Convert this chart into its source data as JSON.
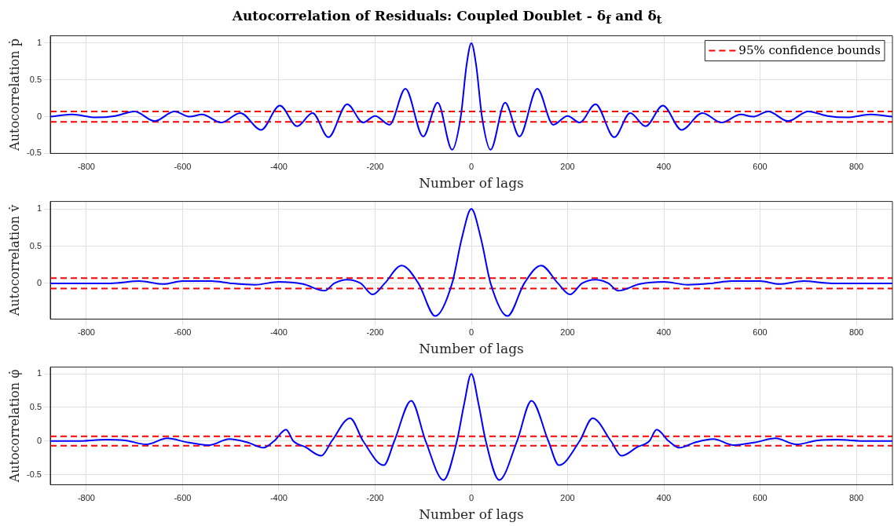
{
  "chart_data": [
    {
      "type": "line",
      "title": "Autocorrelation of Residuals: Coupled Doublet - δ$_{f}$ and δ$_{t}$",
      "xlabel": "Number of lags",
      "ylabel": "Autocorrelation ṗ",
      "xlim": [
        -875,
        875
      ],
      "xticks": [
        -800,
        -600,
        -400,
        -200,
        0,
        200,
        400,
        600,
        800
      ],
      "ylim": [
        -0.5,
        1.1
      ],
      "yticks": [
        -0.5,
        0,
        0.5,
        1
      ],
      "grid": true,
      "legend": "top right",
      "line_style": "solid",
      "marker": "none",
      "series": [
        {
          "color": "#0000ff",
          "x": [
            -875,
            -830,
            -780,
            -740,
            -700,
            -658,
            -617,
            -585,
            -560,
            -520,
            -480,
            -437,
            -398,
            -362,
            -330,
            -297,
            -258,
            -225,
            -200,
            -170,
            -137,
            -100,
            -70,
            -40,
            -22,
            -10,
            0,
            10,
            22,
            40,
            70,
            100,
            137,
            170,
            200,
            225,
            258,
            297,
            330,
            362,
            398,
            437,
            480,
            520,
            560,
            585,
            617,
            658,
            700,
            740,
            780,
            830,
            875
          ],
          "values": [
            0,
            0.03,
            -0.01,
            0.01,
            0.07,
            -0.06,
            0.07,
            0,
            0.03,
            -0.08,
            0.05,
            -0.18,
            0.15,
            -0.13,
            0.05,
            -0.28,
            0.17,
            -0.08,
            0.01,
            -0.11,
            0.38,
            -0.27,
            0.19,
            -0.45,
            0,
            0.7,
            1,
            0.7,
            0,
            -0.45,
            0.19,
            -0.27,
            0.38,
            -0.11,
            0.01,
            -0.08,
            0.17,
            -0.28,
            0.05,
            -0.13,
            0.15,
            -0.18,
            0.05,
            -0.08,
            0.03,
            0,
            0.07,
            -0.06,
            0.07,
            0.01,
            -0.01,
            0.03,
            0
          ]
        }
      ],
      "ref_lines": [
        {
          "axis": "y",
          "value": 0.07,
          "label": "95% confidence bounds",
          "color": "#ff0000",
          "line_style": "dashed"
        },
        {
          "axis": "y",
          "value": -0.07,
          "color": "#ff0000",
          "line_style": "dashed"
        }
      ]
    },
    {
      "type": "line",
      "xlabel": "Number of lags",
      "ylabel": "Autocorrelation v̇",
      "xlim": [
        -875,
        875
      ],
      "xticks": [
        -800,
        -600,
        -400,
        -200,
        0,
        200,
        400,
        600,
        800
      ],
      "ylim": [
        -0.48,
        1.1
      ],
      "yticks": [
        0,
        0.5,
        1
      ],
      "grid": true,
      "line_style": "solid",
      "marker": "none",
      "series": [
        {
          "color": "#0000ff",
          "x": [
            -875,
            -750,
            -690,
            -640,
            -600,
            -540,
            -500,
            -450,
            -400,
            -350,
            -305,
            -285,
            -258,
            -230,
            -205,
            -180,
            -145,
            -110,
            -75,
            -40,
            -20,
            0,
            20,
            40,
            75,
            110,
            145,
            180,
            205,
            230,
            258,
            285,
            305,
            350,
            400,
            450,
            500,
            540,
            600,
            640,
            690,
            750,
            875
          ],
          "values": [
            0,
            0,
            0.03,
            -0.01,
            0.03,
            0.03,
            0,
            -0.02,
            0.02,
            -0.01,
            -0.1,
            0,
            0.05,
            0,
            -0.15,
            0,
            0.24,
            0,
            -0.44,
            0,
            0.6,
            1,
            0.6,
            0,
            -0.44,
            0,
            0.24,
            0,
            -0.15,
            0,
            0.05,
            0,
            -0.1,
            -0.01,
            0.02,
            -0.02,
            0,
            0.03,
            0.03,
            -0.01,
            0.03,
            0,
            0
          ]
        }
      ],
      "ref_lines": [
        {
          "axis": "y",
          "value": 0.07,
          "color": "#ff0000",
          "line_style": "dashed"
        },
        {
          "axis": "y",
          "value": -0.07,
          "color": "#ff0000",
          "line_style": "dashed"
        }
      ]
    },
    {
      "type": "line",
      "xlabel": "Number of lags",
      "ylabel": "Autocorrelation φ̇",
      "xlim": [
        -875,
        875
      ],
      "xticks": [
        -800,
        -600,
        -400,
        -200,
        0,
        200,
        400,
        600,
        800
      ],
      "ylim": [
        -0.65,
        1.1
      ],
      "yticks": [
        -0.5,
        0,
        0.5,
        1
      ],
      "grid": true,
      "line_style": "solid",
      "marker": "none",
      "series": [
        {
          "color": "#0000ff",
          "x": [
            -875,
            -820,
            -760,
            -720,
            -675,
            -632,
            -590,
            -545,
            -503,
            -465,
            -432,
            -410,
            -385,
            -370,
            -345,
            -312,
            -290,
            -252,
            -225,
            -182,
            -160,
            -125,
            -95,
            -58,
            -30,
            -15,
            0,
            15,
            30,
            58,
            95,
            125,
            160,
            182,
            225,
            252,
            290,
            312,
            345,
            370,
            385,
            410,
            432,
            465,
            503,
            545,
            590,
            632,
            675,
            720,
            760,
            820,
            875
          ],
          "values": [
            0,
            0,
            0.02,
            0.01,
            -0.05,
            0.04,
            -0.02,
            -0.06,
            0.03,
            -0.02,
            -0.1,
            0,
            0.17,
            0,
            -0.09,
            -0.22,
            0,
            0.34,
            0,
            -0.36,
            0,
            0.6,
            0,
            -0.58,
            0,
            0.55,
            1,
            0.55,
            0,
            -0.58,
            0,
            0.6,
            0,
            -0.36,
            0,
            0.34,
            0,
            -0.22,
            -0.09,
            0,
            0.17,
            0,
            -0.1,
            -0.02,
            0.03,
            -0.06,
            -0.02,
            0.04,
            -0.05,
            0.01,
            0.02,
            0,
            0
          ]
        }
      ],
      "ref_lines": [
        {
          "axis": "y",
          "value": 0.07,
          "color": "#ff0000",
          "line_style": "dashed"
        },
        {
          "axis": "y",
          "value": -0.07,
          "color": "#ff0000",
          "line_style": "dashed"
        }
      ]
    }
  ]
}
